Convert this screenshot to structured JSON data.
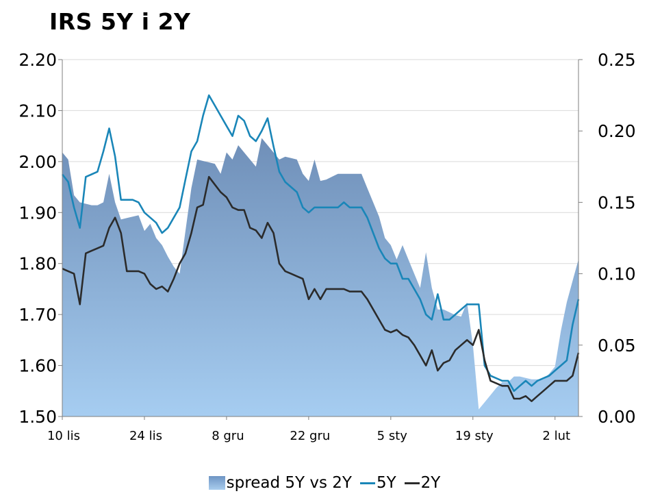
{
  "title": "IRS 5Y i 2Y",
  "legend": {
    "spread": "spread 5Y vs 2Y",
    "y5": "5Y",
    "y2": "2Y"
  },
  "colors": {
    "spread_top": "#6f8fb8",
    "spread_bottom": "#a6cdf1",
    "y5": "#1a86b8",
    "y2": "#2b2b2b",
    "grid": "#d9d9d9",
    "axis": "#7f7f7f"
  },
  "chart_data": {
    "type": "line",
    "title": "IRS 5Y i 2Y",
    "x_ticks": [
      "10 lis",
      "24 lis",
      "8 gru",
      "22 gru",
      "5 sty",
      "19 sty",
      "2 lut"
    ],
    "x_tick_days": [
      0,
      14,
      28,
      42,
      56,
      70,
      84
    ],
    "x_range": [
      0,
      88
    ],
    "y_left": {
      "ticks": [
        "1.50",
        "1.60",
        "1.70",
        "1.80",
        "1.90",
        "2.00",
        "2.10",
        "2.20"
      ],
      "range": [
        1.5,
        2.2
      ]
    },
    "y_right": {
      "ticks": [
        "0.00",
        "0.05",
        "0.10",
        "0.15",
        "0.20",
        "0.25"
      ],
      "range": [
        0.0,
        0.25
      ]
    },
    "grid": true,
    "legend_position": "bottom",
    "series": [
      {
        "name": "spread 5Y vs 2Y",
        "type": "area",
        "axis": "right",
        "x": [
          0,
          1,
          2,
          3,
          4,
          5,
          6,
          7,
          8,
          9,
          10,
          11,
          12,
          13,
          14,
          15,
          16,
          17,
          18,
          19,
          20,
          21,
          22,
          23,
          24,
          25,
          26,
          27,
          28,
          29,
          30,
          31,
          32,
          33,
          34,
          35,
          36,
          37,
          38,
          39,
          40,
          41,
          42,
          43,
          44,
          45,
          46,
          47,
          48,
          49,
          50,
          51,
          52,
          53,
          54,
          55,
          56,
          57,
          58,
          59,
          60,
          61,
          62,
          63,
          64,
          65,
          66,
          67,
          68,
          69,
          70,
          71,
          72,
          73,
          74,
          75,
          76,
          77,
          78,
          79,
          80,
          81,
          82,
          83,
          84,
          85,
          86,
          87,
          88
        ],
        "values": [
          0.185,
          0.18,
          0.155,
          0.15,
          0.149,
          0.148,
          0.148,
          0.15,
          0.17,
          0.15,
          0.138,
          0.139,
          0.14,
          0.141,
          0.13,
          0.135,
          0.125,
          0.12,
          0.112,
          0.105,
          0.1,
          0.13,
          0.16,
          0.18,
          0.179,
          0.178,
          0.177,
          0.17,
          0.185,
          0.18,
          0.19,
          0.185,
          0.18,
          0.175,
          0.195,
          0.19,
          0.185,
          0.18,
          0.182,
          0.181,
          0.18,
          0.17,
          0.165,
          0.18,
          0.165,
          0.166,
          0.168,
          0.17,
          0.17,
          0.17,
          0.17,
          0.17,
          0.16,
          0.15,
          0.14,
          0.125,
          0.12,
          0.11,
          0.12,
          0.11,
          0.1,
          0.09,
          0.115,
          0.09,
          0.075,
          0.075,
          0.073,
          0.071,
          0.07,
          0.08,
          0.05,
          0.005,
          0.01,
          0.015,
          0.02,
          0.024,
          0.024,
          0.028,
          0.028,
          0.027,
          0.026,
          0.026,
          0.026,
          0.03,
          0.035,
          0.06,
          0.08,
          0.095,
          0.11
        ]
      },
      {
        "name": "5Y",
        "type": "line",
        "axis": "left",
        "x": [
          0,
          1,
          2,
          3,
          4,
          5,
          6,
          7,
          8,
          9,
          10,
          11,
          12,
          13,
          14,
          15,
          16,
          17,
          18,
          19,
          20,
          21,
          22,
          23,
          24,
          25,
          26,
          27,
          28,
          29,
          30,
          31,
          32,
          33,
          34,
          35,
          36,
          37,
          38,
          39,
          40,
          41,
          42,
          43,
          44,
          45,
          46,
          47,
          48,
          49,
          50,
          51,
          52,
          53,
          54,
          55,
          56,
          57,
          58,
          59,
          60,
          61,
          62,
          63,
          64,
          65,
          66,
          67,
          68,
          69,
          70,
          71,
          72,
          73,
          74,
          75,
          76,
          77,
          78,
          79,
          80,
          81,
          82,
          83,
          84,
          85,
          86,
          87,
          88
        ],
        "values": [
          1.975,
          1.96,
          1.91,
          1.87,
          1.97,
          1.975,
          1.98,
          2.02,
          2.065,
          2.01,
          1.925,
          1.925,
          1.925,
          1.92,
          1.9,
          1.89,
          1.88,
          1.86,
          1.87,
          1.89,
          1.91,
          1.965,
          2.02,
          2.04,
          2.09,
          2.13,
          2.11,
          2.09,
          2.07,
          2.05,
          2.09,
          2.08,
          2.05,
          2.04,
          2.06,
          2.085,
          2.03,
          1.98,
          1.96,
          1.95,
          1.94,
          1.91,
          1.9,
          1.91,
          1.91,
          1.91,
          1.91,
          1.91,
          1.92,
          1.91,
          1.91,
          1.91,
          1.89,
          1.86,
          1.83,
          1.81,
          1.8,
          1.8,
          1.77,
          1.77,
          1.75,
          1.73,
          1.7,
          1.69,
          1.74,
          1.69,
          1.69,
          1.7,
          1.71,
          1.72,
          1.72,
          1.72,
          1.6,
          1.58,
          1.575,
          1.57,
          1.57,
          1.55,
          1.56,
          1.57,
          1.56,
          1.57,
          1.575,
          1.58,
          1.59,
          1.6,
          1.61,
          1.68,
          1.73
        ]
      },
      {
        "name": "2Y",
        "type": "line",
        "axis": "left",
        "x": [
          0,
          1,
          2,
          3,
          4,
          5,
          6,
          7,
          8,
          9,
          10,
          11,
          12,
          13,
          14,
          15,
          16,
          17,
          18,
          19,
          20,
          21,
          22,
          23,
          24,
          25,
          26,
          27,
          28,
          29,
          30,
          31,
          32,
          33,
          34,
          35,
          36,
          37,
          38,
          39,
          40,
          41,
          42,
          43,
          44,
          45,
          46,
          47,
          48,
          49,
          50,
          51,
          52,
          53,
          54,
          55,
          56,
          57,
          58,
          59,
          60,
          61,
          62,
          63,
          64,
          65,
          66,
          67,
          68,
          69,
          70,
          71,
          72,
          73,
          74,
          75,
          76,
          77,
          78,
          79,
          80,
          81,
          82,
          83,
          84,
          85,
          86,
          87,
          88
        ],
        "values": [
          1.79,
          1.785,
          1.78,
          1.72,
          1.82,
          1.825,
          1.83,
          1.835,
          1.87,
          1.89,
          1.86,
          1.785,
          1.785,
          1.785,
          1.78,
          1.76,
          1.75,
          1.755,
          1.745,
          1.77,
          1.8,
          1.82,
          1.86,
          1.91,
          1.915,
          1.97,
          1.955,
          1.94,
          1.93,
          1.91,
          1.905,
          1.905,
          1.87,
          1.865,
          1.85,
          1.88,
          1.86,
          1.8,
          1.785,
          1.78,
          1.775,
          1.77,
          1.73,
          1.75,
          1.73,
          1.75,
          1.75,
          1.75,
          1.75,
          1.745,
          1.745,
          1.745,
          1.73,
          1.71,
          1.69,
          1.67,
          1.665,
          1.67,
          1.66,
          1.655,
          1.64,
          1.62,
          1.6,
          1.63,
          1.59,
          1.605,
          1.61,
          1.63,
          1.64,
          1.65,
          1.64,
          1.67,
          1.61,
          1.57,
          1.565,
          1.56,
          1.56,
          1.535,
          1.535,
          1.54,
          1.53,
          1.54,
          1.55,
          1.56,
          1.57,
          1.57,
          1.57,
          1.58,
          1.625
        ]
      }
    ]
  }
}
